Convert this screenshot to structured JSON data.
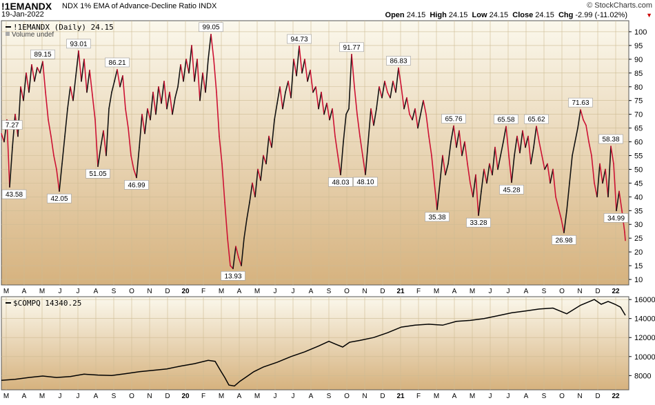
{
  "header": {
    "symbol": "!1EMANDX",
    "description": "NDX 1% EMA of Advance-Decline Ratio",
    "exchange": "INDX",
    "date": "19-Jan-2022",
    "brand": "© StockCharts.com",
    "open_label": "Open",
    "open": "24.15",
    "high_label": "High",
    "high": "24.15",
    "low_label": "Low",
    "low": "24.15",
    "close_label": "Close",
    "close": "24.15",
    "chg_label": "Chg",
    "chg": "-2.99 (-11.02%)"
  },
  "colors": {
    "up": "#111111",
    "down": "#cc1133",
    "bg_top": "#fbf8ec",
    "bg_bottom": "#d6b27e"
  },
  "chart_data": [
    {
      "type": "line",
      "title": "!1EMANDX (Daily) 24.15",
      "subtitle": "Volume undef",
      "ylim": [
        8,
        104
      ],
      "y_ticks": [
        10,
        15,
        20,
        25,
        30,
        35,
        40,
        45,
        50,
        55,
        60,
        65,
        70,
        75,
        80,
        85,
        90,
        95,
        100
      ],
      "x_labels": [
        "M",
        "A",
        "M",
        "J",
        "J",
        "A",
        "S",
        "O",
        "N",
        "D",
        "20",
        "F",
        "M",
        "A",
        "M",
        "J",
        "J",
        "A",
        "S",
        "O",
        "N",
        "D",
        "21",
        "F",
        "M",
        "A",
        "M",
        "J",
        "J",
        "A",
        "S",
        "O",
        "N",
        "D",
        "22"
      ],
      "points": [
        [
          0,
          63
        ],
        [
          4,
          60
        ],
        [
          8,
          68
        ],
        [
          12,
          43.58
        ],
        [
          16,
          58
        ],
        [
          20,
          70
        ],
        [
          24,
          62
        ],
        [
          28,
          80
        ],
        [
          32,
          75
        ],
        [
          36,
          85
        ],
        [
          40,
          78
        ],
        [
          44,
          88
        ],
        [
          48,
          82
        ],
        [
          52,
          87
        ],
        [
          56,
          85
        ],
        [
          60,
          89.15
        ],
        [
          64,
          78
        ],
        [
          68,
          68
        ],
        [
          72,
          62
        ],
        [
          76,
          55
        ],
        [
          80,
          50
        ],
        [
          84,
          42.05
        ],
        [
          88,
          52
        ],
        [
          92,
          62
        ],
        [
          96,
          72
        ],
        [
          100,
          80
        ],
        [
          104,
          75
        ],
        [
          108,
          84
        ],
        [
          112,
          93.01
        ],
        [
          116,
          82
        ],
        [
          120,
          90
        ],
        [
          124,
          78
        ],
        [
          128,
          86
        ],
        [
          132,
          77
        ],
        [
          136,
          68
        ],
        [
          140,
          51.05
        ],
        [
          144,
          58
        ],
        [
          148,
          64
        ],
        [
          152,
          55
        ],
        [
          156,
          72
        ],
        [
          160,
          78
        ],
        [
          164,
          82
        ],
        [
          168,
          86.21
        ],
        [
          172,
          80
        ],
        [
          176,
          84
        ],
        [
          180,
          72
        ],
        [
          184,
          65
        ],
        [
          188,
          55
        ],
        [
          192,
          50
        ],
        [
          196,
          46.99
        ],
        [
          200,
          58
        ],
        [
          204,
          70
        ],
        [
          208,
          63
        ],
        [
          212,
          72
        ],
        [
          216,
          68
        ],
        [
          220,
          78
        ],
        [
          224,
          70
        ],
        [
          228,
          80
        ],
        [
          232,
          74
        ],
        [
          236,
          82
        ],
        [
          240,
          72
        ],
        [
          244,
          78
        ],
        [
          248,
          70
        ],
        [
          252,
          76
        ],
        [
          256,
          80
        ],
        [
          260,
          88
        ],
        [
          264,
          82
        ],
        [
          268,
          90
        ],
        [
          272,
          85
        ],
        [
          276,
          95
        ],
        [
          280,
          82
        ],
        [
          284,
          90
        ],
        [
          288,
          75
        ],
        [
          292,
          85
        ],
        [
          296,
          78
        ],
        [
          300,
          90
        ],
        [
          304,
          99.05
        ],
        [
          308,
          90
        ],
        [
          312,
          78
        ],
        [
          316,
          62
        ],
        [
          320,
          52
        ],
        [
          324,
          38
        ],
        [
          328,
          25
        ],
        [
          332,
          15
        ],
        [
          336,
          13.93
        ],
        [
          340,
          22
        ],
        [
          344,
          18
        ],
        [
          348,
          15
        ],
        [
          352,
          25
        ],
        [
          356,
          32
        ],
        [
          360,
          38
        ],
        [
          364,
          45
        ],
        [
          368,
          40
        ],
        [
          372,
          50
        ],
        [
          376,
          46
        ],
        [
          380,
          55
        ],
        [
          384,
          52
        ],
        [
          388,
          62
        ],
        [
          392,
          58
        ],
        [
          396,
          68
        ],
        [
          400,
          74
        ],
        [
          404,
          80
        ],
        [
          408,
          72
        ],
        [
          412,
          78
        ],
        [
          416,
          82
        ],
        [
          420,
          76
        ],
        [
          424,
          90
        ],
        [
          428,
          84
        ],
        [
          432,
          94.73
        ],
        [
          436,
          85
        ],
        [
          440,
          90
        ],
        [
          444,
          82
        ],
        [
          448,
          86
        ],
        [
          452,
          78
        ],
        [
          456,
          80
        ],
        [
          460,
          72
        ],
        [
          464,
          78
        ],
        [
          468,
          70
        ],
        [
          472,
          74
        ],
        [
          476,
          68
        ],
        [
          480,
          72
        ],
        [
          484,
          62
        ],
        [
          488,
          55
        ],
        [
          492,
          48.03
        ],
        [
          496,
          60
        ],
        [
          500,
          70
        ],
        [
          504,
          72
        ],
        [
          508,
          91.77
        ],
        [
          512,
          80
        ],
        [
          516,
          70
        ],
        [
          520,
          62
        ],
        [
          524,
          55
        ],
        [
          528,
          48.1
        ],
        [
          532,
          60
        ],
        [
          536,
          72
        ],
        [
          540,
          66
        ],
        [
          544,
          72
        ],
        [
          548,
          80
        ],
        [
          552,
          76
        ],
        [
          556,
          82
        ],
        [
          560,
          78
        ],
        [
          564,
          76
        ],
        [
          568,
          82
        ],
        [
          572,
          78
        ],
        [
          576,
          86.83
        ],
        [
          580,
          80
        ],
        [
          584,
          72
        ],
        [
          588,
          76
        ],
        [
          592,
          70
        ],
        [
          596,
          68
        ],
        [
          600,
          72
        ],
        [
          604,
          65
        ],
        [
          608,
          70
        ],
        [
          612,
          75
        ],
        [
          616,
          70
        ],
        [
          620,
          62
        ],
        [
          624,
          55
        ],
        [
          628,
          45
        ],
        [
          632,
          35.38
        ],
        [
          636,
          45
        ],
        [
          640,
          55
        ],
        [
          644,
          48
        ],
        [
          648,
          52
        ],
        [
          652,
          60
        ],
        [
          656,
          65.76
        ],
        [
          660,
          58
        ],
        [
          664,
          64
        ],
        [
          668,
          55
        ],
        [
          672,
          60
        ],
        [
          676,
          52
        ],
        [
          680,
          45
        ],
        [
          684,
          40
        ],
        [
          688,
          48
        ],
        [
          692,
          33.28
        ],
        [
          696,
          42
        ],
        [
          700,
          50
        ],
        [
          704,
          45
        ],
        [
          708,
          52
        ],
        [
          712,
          48
        ],
        [
          716,
          58
        ],
        [
          720,
          50
        ],
        [
          724,
          55
        ],
        [
          728,
          60
        ],
        [
          732,
          65.58
        ],
        [
          736,
          55
        ],
        [
          740,
          45.28
        ],
        [
          744,
          55
        ],
        [
          748,
          62
        ],
        [
          752,
          56
        ],
        [
          756,
          64
        ],
        [
          760,
          58
        ],
        [
          764,
          62
        ],
        [
          768,
          52
        ],
        [
          772,
          58
        ],
        [
          776,
          65.62
        ],
        [
          780,
          60
        ],
        [
          784,
          55
        ],
        [
          788,
          50
        ],
        [
          792,
          52
        ],
        [
          796,
          45
        ],
        [
          800,
          50
        ],
        [
          804,
          40
        ],
        [
          808,
          36
        ],
        [
          812,
          32
        ],
        [
          816,
          26.98
        ],
        [
          820,
          35
        ],
        [
          824,
          45
        ],
        [
          828,
          55
        ],
        [
          832,
          60
        ],
        [
          836,
          65
        ],
        [
          840,
          71.63
        ],
        [
          844,
          68
        ],
        [
          848,
          66
        ],
        [
          852,
          60
        ],
        [
          856,
          55
        ],
        [
          860,
          45
        ],
        [
          864,
          40
        ],
        [
          868,
          52
        ],
        [
          872,
          45
        ],
        [
          876,
          50
        ],
        [
          880,
          40
        ],
        [
          884,
          58.38
        ],
        [
          888,
          52
        ],
        [
          892,
          34.99
        ],
        [
          896,
          42
        ],
        [
          900,
          35
        ],
        [
          904,
          27.14
        ],
        [
          905,
          24.15
        ]
      ],
      "peak_labels": [
        {
          "i": 3,
          "text": "43.58",
          "pos": "below"
        },
        {
          "i": 15,
          "text": "89.15",
          "pos": "above"
        },
        {
          "i": 21,
          "text": "42.05",
          "pos": "below"
        },
        {
          "i": 28,
          "text": "93.01",
          "pos": "above"
        },
        {
          "i": 35,
          "text": "51.05",
          "pos": "below"
        },
        {
          "i": 42,
          "text": "86.21",
          "pos": "above"
        },
        {
          "i": 49,
          "text": "46.99",
          "pos": "below"
        },
        {
          "i": 76,
          "text": "99.05",
          "pos": "above"
        },
        {
          "i": 84,
          "text": "13.93",
          "pos": "below"
        },
        {
          "i": 108,
          "text": "94.73",
          "pos": "above"
        },
        {
          "i": 123,
          "text": "48.03",
          "pos": "below"
        },
        {
          "i": 127,
          "text": "91.77",
          "pos": "above"
        },
        {
          "i": 132,
          "text": "48.10",
          "pos": "below"
        },
        {
          "i": 144,
          "text": "86.83",
          "pos": "above"
        },
        {
          "i": 158,
          "text": "35.38",
          "pos": "below"
        },
        {
          "i": 164,
          "text": "65.76",
          "pos": "above"
        },
        {
          "i": 173,
          "text": "33.28",
          "pos": "below"
        },
        {
          "i": 183,
          "text": "65.58",
          "pos": "above"
        },
        {
          "i": 185,
          "text": "45.28",
          "pos": "below"
        },
        {
          "i": 194,
          "text": "65.62",
          "pos": "above"
        },
        {
          "i": 204,
          "text": "26.98",
          "pos": "below"
        },
        {
          "i": 210,
          "text": "71.63",
          "pos": "above"
        },
        {
          "i": 221,
          "text": "58.38",
          "pos": "above"
        },
        {
          "i": 223,
          "text": "34.99",
          "pos": "below"
        }
      ],
      "edge_label": "7.27"
    },
    {
      "type": "line",
      "title": "$COMPQ 14340.25",
      "ylim": [
        6500,
        16300
      ],
      "y_ticks": [
        8000,
        10000,
        12000,
        14000,
        16000
      ],
      "points": [
        [
          0,
          7500
        ],
        [
          20,
          7600
        ],
        [
          40,
          7800
        ],
        [
          60,
          7950
        ],
        [
          80,
          7800
        ],
        [
          100,
          7900
        ],
        [
          120,
          8150
        ],
        [
          140,
          8050
        ],
        [
          160,
          8000
        ],
        [
          180,
          8200
        ],
        [
          200,
          8400
        ],
        [
          220,
          8550
        ],
        [
          240,
          8700
        ],
        [
          260,
          9000
        ],
        [
          280,
          9250
        ],
        [
          300,
          9600
        ],
        [
          310,
          9500
        ],
        [
          318,
          8500
        ],
        [
          324,
          7800
        ],
        [
          330,
          7000
        ],
        [
          338,
          6900
        ],
        [
          346,
          7400
        ],
        [
          356,
          7900
        ],
        [
          366,
          8400
        ],
        [
          380,
          8900
        ],
        [
          400,
          9400
        ],
        [
          420,
          10000
        ],
        [
          440,
          10500
        ],
        [
          460,
          11100
        ],
        [
          475,
          11600
        ],
        [
          485,
          11300
        ],
        [
          495,
          11000
        ],
        [
          505,
          11500
        ],
        [
          520,
          11700
        ],
        [
          540,
          12000
        ],
        [
          560,
          12500
        ],
        [
          580,
          13100
        ],
        [
          600,
          13300
        ],
        [
          620,
          13400
        ],
        [
          640,
          13300
        ],
        [
          660,
          13700
        ],
        [
          680,
          13800
        ],
        [
          700,
          14000
        ],
        [
          720,
          14300
        ],
        [
          740,
          14600
        ],
        [
          760,
          14800
        ],
        [
          780,
          15000
        ],
        [
          800,
          15100
        ],
        [
          820,
          14500
        ],
        [
          840,
          15400
        ],
        [
          860,
          16000
        ],
        [
          870,
          15500
        ],
        [
          880,
          15800
        ],
        [
          890,
          15500
        ],
        [
          898,
          15200
        ],
        [
          905,
          14340
        ]
      ]
    }
  ]
}
